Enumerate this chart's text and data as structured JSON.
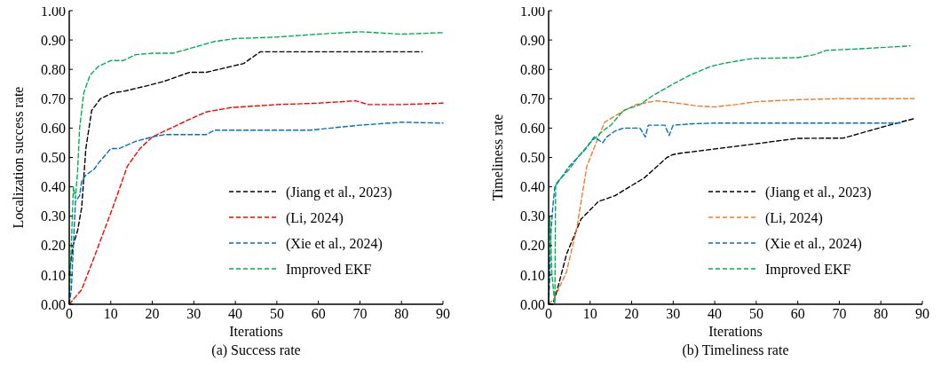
{
  "chart_data": [
    {
      "type": "line",
      "title": "(a) Success  rate",
      "xlabel": "Iterations",
      "ylabel": "Localization success rate",
      "xlim": [
        0,
        90
      ],
      "xticks": [
        0,
        10,
        20,
        30,
        40,
        50,
        60,
        70,
        80,
        90
      ],
      "ylim": [
        0,
        1
      ],
      "yticks": [
        {
          "value": 0,
          "label": "0.00"
        },
        {
          "value": 0.1,
          "label": "0.10"
        },
        {
          "value": 0.2,
          "label": "0.20"
        },
        {
          "value": 0.3,
          "label": "0.30"
        },
        {
          "value": 0.4,
          "label": "0.40"
        },
        {
          "value": 0.5,
          "label": "0.50"
        },
        {
          "value": 0.6,
          "label": "0.60"
        },
        {
          "value": 0.7,
          "label": "0.70"
        },
        {
          "value": 0.8,
          "label": "0.80"
        },
        {
          "value": 0.9,
          "label": "0.90"
        },
        {
          "value": 1,
          "label": "1.00"
        }
      ],
      "grid": false,
      "legend": "bottom right",
      "line_style": "dashed",
      "marker": "none",
      "series": [
        {
          "name": "(Jiang et al., 2023)",
          "color": "#000000",
          "x": [
            0,
            0.9,
            2,
            3,
            4,
            5.4,
            7.5,
            10.5,
            13,
            19,
            23,
            29,
            33,
            39,
            42,
            46,
            85
          ],
          "values": [
            0.1,
            0.2,
            0.25,
            0.33,
            0.53,
            0.66,
            0.7,
            0.72,
            0.725,
            0.745,
            0.76,
            0.79,
            0.79,
            0.81,
            0.82,
            0.86,
            0.86
          ]
        },
        {
          "name": "(Li, 2024)",
          "color": "#ff0000",
          "x": [
            0,
            3,
            6,
            10.5,
            14,
            17,
            20,
            23,
            29,
            33,
            39,
            50,
            60,
            69,
            72,
            80,
            90
          ],
          "values": [
            0,
            0.05,
            0.16,
            0.33,
            0.47,
            0.53,
            0.57,
            0.59,
            0.63,
            0.655,
            0.67,
            0.68,
            0.685,
            0.693,
            0.68,
            0.68,
            0.685
          ]
        },
        {
          "name": "(Xie et al., 2024)",
          "color": "#0070c0",
          "x": [
            0,
            0.5,
            1,
            1.5,
            2.5,
            3,
            4,
            5,
            6,
            7,
            10,
            12,
            16,
            20,
            23,
            33,
            35,
            58,
            63,
            70,
            80,
            90
          ],
          "values": [
            0,
            0.05,
            0.2,
            0.35,
            0.37,
            0.42,
            0.44,
            0.45,
            0.46,
            0.48,
            0.53,
            0.53,
            0.555,
            0.57,
            0.578,
            0.578,
            0.593,
            0.593,
            0.6,
            0.61,
            0.62,
            0.617
          ]
        },
        {
          "name": "Improved EKF",
          "color": "#00b050",
          "x": [
            0,
            0.5,
            1,
            1.5,
            2,
            2.5,
            3.5,
            5,
            7,
            10,
            13,
            16,
            20,
            25,
            30,
            35,
            40,
            50,
            60,
            70,
            80,
            90
          ],
          "values": [
            0,
            0.2,
            0.4,
            0.36,
            0.45,
            0.6,
            0.72,
            0.78,
            0.81,
            0.83,
            0.83,
            0.85,
            0.855,
            0.855,
            0.875,
            0.895,
            0.905,
            0.91,
            0.92,
            0.928,
            0.92,
            0.925
          ]
        }
      ]
    },
    {
      "type": "line",
      "title": "(b) Timeliness rate",
      "xlabel": "Iterations",
      "ylabel": "Timeliness rate",
      "xlim": [
        0,
        90
      ],
      "xticks": [
        0,
        10,
        20,
        30,
        40,
        50,
        60,
        70,
        80,
        90
      ],
      "ylim": [
        0,
        1
      ],
      "yticks": [
        {
          "value": 0,
          "label": "0.00"
        },
        {
          "value": 0.1,
          "label": "0.10"
        },
        {
          "value": 0.2,
          "label": "0.20"
        },
        {
          "value": 0.3,
          "label": "0.30"
        },
        {
          "value": 0.4,
          "label": "0.40"
        },
        {
          "value": 0.5,
          "label": "0.50"
        },
        {
          "value": 0.6,
          "label": "0.60"
        },
        {
          "value": 0.7,
          "label": "0.70"
        },
        {
          "value": 0.8,
          "label": "0.80"
        },
        {
          "value": 0.9,
          "label": "0.90"
        },
        {
          "value": 1,
          "label": "1.00"
        }
      ],
      "grid": false,
      "legend": "bottom right",
      "line_style": "dashed",
      "marker": "none",
      "series": [
        {
          "name": "(Jiang et al., 2023)",
          "color": "#000000",
          "x": [
            0,
            1,
            2.1,
            4.3,
            7.8,
            12,
            14,
            16,
            23,
            28.5,
            30,
            32,
            39,
            49,
            60,
            71,
            82,
            88
          ],
          "values": [
            0,
            0,
            0.05,
            0.17,
            0.29,
            0.35,
            0.36,
            0.37,
            0.43,
            0.5,
            0.51,
            0.515,
            0.527,
            0.545,
            0.565,
            0.566,
            0.61,
            0.632
          ]
        },
        {
          "name": "(Li, 2024)",
          "color": "#ed7d31",
          "x": [
            0,
            1.4,
            4.3,
            6.8,
            9.2,
            12,
            13.5,
            17,
            21,
            26,
            31,
            36,
            40,
            45,
            50,
            60,
            70,
            80,
            88
          ],
          "values": [
            0,
            0.02,
            0.11,
            0.26,
            0.47,
            0.57,
            0.62,
            0.65,
            0.68,
            0.693,
            0.685,
            0.675,
            0.672,
            0.68,
            0.69,
            0.697,
            0.7,
            0.7,
            0.7
          ]
        },
        {
          "name": "(Xie et al., 2024)",
          "color": "#0070c0",
          "x": [
            0,
            0.3,
            0.6,
            1,
            1.5,
            3,
            5,
            7,
            9,
            11,
            12,
            13,
            14,
            16,
            18,
            22,
            23.3,
            24,
            26,
            28,
            29,
            30,
            35,
            40,
            85
          ],
          "values": [
            0,
            0.1,
            0.25,
            0.33,
            0.4,
            0.43,
            0.47,
            0.5,
            0.53,
            0.57,
            0.56,
            0.55,
            0.57,
            0.59,
            0.6,
            0.6,
            0.57,
            0.61,
            0.61,
            0.61,
            0.575,
            0.61,
            0.615,
            0.617,
            0.617
          ]
        },
        {
          "name": "Improved EKF",
          "color": "#00b050",
          "x": [
            0,
            0.3,
            0.8,
            1.5,
            1.7,
            3,
            5,
            7,
            10,
            13,
            15,
            18,
            22,
            25,
            30,
            34,
            39,
            42,
            49,
            60,
            64,
            67,
            75,
            87
          ],
          "values": [
            0,
            0.3,
            0.1,
            0,
            0.41,
            0.43,
            0.46,
            0.5,
            0.55,
            0.59,
            0.61,
            0.66,
            0.68,
            0.71,
            0.75,
            0.78,
            0.81,
            0.82,
            0.837,
            0.84,
            0.85,
            0.865,
            0.87,
            0.88
          ]
        }
      ]
    }
  ]
}
